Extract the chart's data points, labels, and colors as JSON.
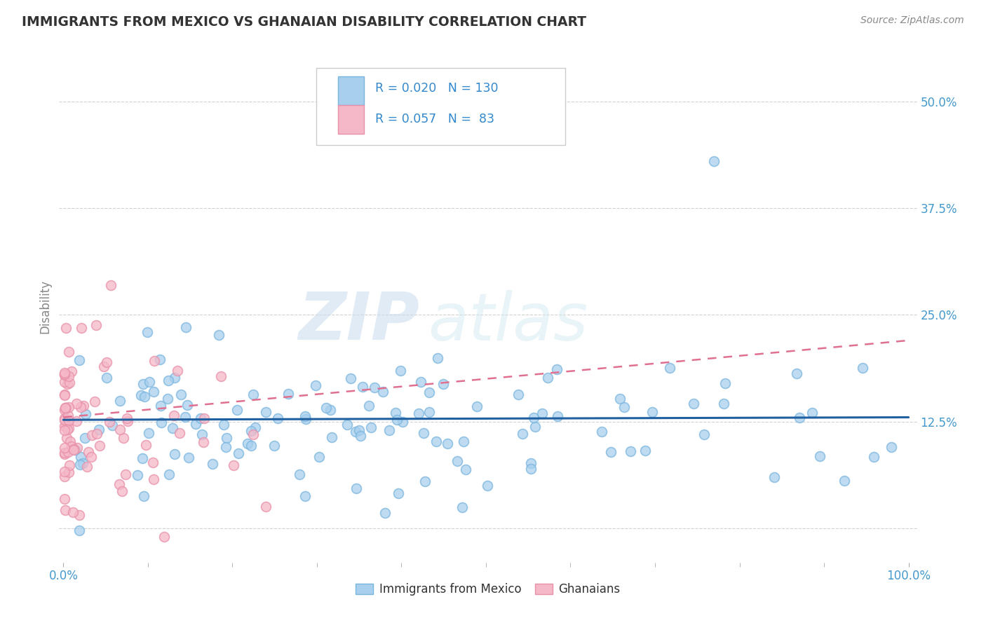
{
  "title": "IMMIGRANTS FROM MEXICO VS GHANAIAN DISABILITY CORRELATION CHART",
  "source": "Source: ZipAtlas.com",
  "ylabel": "Disability",
  "ytick_vals": [
    0.0,
    0.125,
    0.25,
    0.375,
    0.5
  ],
  "ytick_labels": [
    "",
    "12.5%",
    "25.0%",
    "37.5%",
    "50.0%"
  ],
  "xlim": [
    -0.005,
    1.01
  ],
  "ylim": [
    -0.04,
    0.56
  ],
  "blue_face_color": "#A8D0EE",
  "blue_edge_color": "#7AB5DE",
  "pink_face_color": "#F5B8C8",
  "pink_edge_color": "#E890A8",
  "blue_line_color": "#2060A0",
  "pink_line_color": "#E07090",
  "legend_blue_label": "Immigrants from Mexico",
  "legend_pink_label": "Ghanaians",
  "R_blue": 0.02,
  "N_blue": 130,
  "R_pink": 0.057,
  "N_pink": 83,
  "watermark_zip": "ZIP",
  "watermark_atlas": "atlas",
  "title_color": "#333333",
  "tick_color": "#4499CC",
  "grid_color": "#CCCCCC",
  "yaxis_label_color": "#888888",
  "source_color": "#888888"
}
